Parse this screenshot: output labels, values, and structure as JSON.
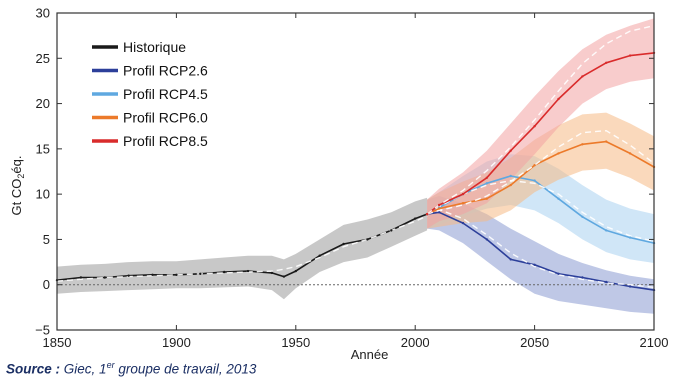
{
  "chart_data": {
    "type": "line",
    "title": "",
    "xlabel": "Année",
    "ylabel_main": "Gt CO",
    "ylabel_sub": "2",
    "ylabel_suffix": "éq.",
    "xlim": [
      1850,
      2100
    ],
    "ylim": [
      -5,
      30
    ],
    "xticks": [
      "1850",
      "1900",
      "1950",
      "2000",
      "2050",
      "2100"
    ],
    "yticks": [
      "−5",
      "0",
      "5",
      "10",
      "15",
      "20",
      "25",
      "30"
    ],
    "zero_line": 0,
    "legend_position": "top-left",
    "series": [
      {
        "name": "Historique",
        "color": "#1a1a1a",
        "band_color": "#9a9a9a",
        "x": [
          1850,
          1860,
          1870,
          1880,
          1890,
          1900,
          1910,
          1920,
          1930,
          1940,
          1945,
          1950,
          1960,
          1970,
          1980,
          1990,
          2000,
          2005
        ],
        "y": [
          0.5,
          0.8,
          0.8,
          1.0,
          1.1,
          1.1,
          1.2,
          1.4,
          1.5,
          1.3,
          0.9,
          1.5,
          3.2,
          4.5,
          5.0,
          6.0,
          7.3,
          7.8
        ],
        "trend": [
          0.4,
          0.6,
          0.8,
          0.9,
          1.0,
          1.1,
          1.2,
          1.3,
          1.4,
          1.5,
          1.7,
          2.0,
          3.0,
          4.2,
          5.0,
          6.0,
          7.0,
          7.6
        ],
        "band_upper": [
          2.0,
          2.2,
          2.3,
          2.5,
          2.6,
          2.6,
          2.8,
          3.0,
          3.2,
          3.2,
          2.8,
          3.4,
          5.0,
          6.6,
          7.2,
          8.0,
          9.2,
          9.6
        ],
        "band_lower": [
          -1.0,
          -0.8,
          -0.7,
          -0.6,
          -0.5,
          -0.4,
          -0.4,
          -0.3,
          -0.2,
          -0.6,
          -1.6,
          -0.4,
          1.4,
          2.5,
          3.0,
          4.2,
          5.4,
          6.0
        ]
      },
      {
        "name": "Profil RCP2.6",
        "color": "#2c3f9a",
        "band_color": "#8a9ad2",
        "x": [
          2005,
          2010,
          2020,
          2030,
          2040,
          2050,
          2060,
          2070,
          2080,
          2090,
          2100
        ],
        "y": [
          7.8,
          8.0,
          6.8,
          5.0,
          2.8,
          2.2,
          1.2,
          0.8,
          0.3,
          -0.2,
          -0.6
        ],
        "trend": [
          7.8,
          8.3,
          7.3,
          5.5,
          3.5,
          2.0,
          1.1,
          0.6,
          0.2,
          0.0,
          -0.3
        ],
        "band_upper": [
          9.4,
          9.8,
          9.0,
          7.8,
          6.2,
          4.8,
          3.4,
          2.4,
          1.6,
          1.0,
          0.6
        ],
        "band_lower": [
          6.2,
          6.0,
          4.6,
          2.6,
          0.6,
          -1.0,
          -1.8,
          -2.2,
          -2.6,
          -3.0,
          -3.2
        ]
      },
      {
        "name": "Profil RCP4.5",
        "color": "#5fa8e0",
        "band_color": "#a9d2f0",
        "x": [
          2005,
          2010,
          2020,
          2030,
          2040,
          2050,
          2060,
          2070,
          2080,
          2090,
          2100
        ],
        "y": [
          7.8,
          8.5,
          10.0,
          11.2,
          12.0,
          11.5,
          9.5,
          7.5,
          6.0,
          5.2,
          4.6
        ],
        "trend": [
          7.8,
          8.6,
          10.0,
          11.0,
          11.5,
          11.2,
          10.0,
          8.0,
          6.4,
          5.4,
          4.8
        ],
        "band_upper": [
          9.4,
          10.2,
          12.0,
          13.6,
          14.4,
          14.2,
          12.8,
          11.0,
          9.4,
          8.4,
          7.8
        ],
        "band_lower": [
          6.2,
          6.6,
          7.6,
          8.4,
          8.8,
          8.2,
          6.8,
          5.0,
          3.6,
          2.8,
          2.4
        ]
      },
      {
        "name": "Profil RCP6.0",
        "color": "#ec7a2a",
        "band_color": "#f6b985",
        "x": [
          2005,
          2010,
          2020,
          2030,
          2040,
          2050,
          2060,
          2070,
          2080,
          2090,
          2100
        ],
        "y": [
          7.8,
          8.4,
          9.0,
          9.5,
          11.0,
          13.2,
          14.5,
          15.5,
          15.8,
          14.5,
          13.0
        ],
        "trend": [
          7.8,
          8.2,
          8.8,
          9.8,
          11.4,
          13.2,
          15.2,
          16.8,
          17.0,
          15.4,
          13.4
        ],
        "band_upper": [
          9.4,
          10.2,
          11.4,
          12.4,
          14.0,
          16.0,
          17.6,
          18.8,
          19.0,
          17.8,
          16.4
        ],
        "band_lower": [
          6.2,
          6.4,
          6.8,
          7.0,
          8.2,
          10.2,
          11.6,
          12.6,
          12.8,
          11.8,
          10.4
        ]
      },
      {
        "name": "Profil RCP8.5",
        "color": "#d92b2b",
        "band_color": "#f3a3a3",
        "x": [
          2005,
          2010,
          2020,
          2030,
          2040,
          2050,
          2060,
          2070,
          2080,
          2090,
          2100
        ],
        "y": [
          7.8,
          8.8,
          10.0,
          11.8,
          14.8,
          17.5,
          20.5,
          23.0,
          24.5,
          25.3,
          25.6
        ],
        "trend": [
          7.8,
          8.8,
          10.4,
          12.6,
          15.2,
          18.2,
          21.4,
          24.4,
          26.6,
          28.0,
          28.6
        ],
        "band_upper": [
          9.4,
          10.6,
          12.4,
          14.8,
          17.8,
          20.8,
          23.6,
          26.0,
          27.6,
          28.6,
          29.4
        ],
        "band_lower": [
          6.2,
          7.0,
          7.8,
          9.0,
          11.6,
          14.4,
          17.4,
          20.0,
          21.6,
          22.4,
          22.8
        ]
      }
    ]
  },
  "source": {
    "label": "Source :",
    "text_before": "Giec, 1",
    "superscript": "er",
    "text_after": " groupe de travail, 2013"
  }
}
